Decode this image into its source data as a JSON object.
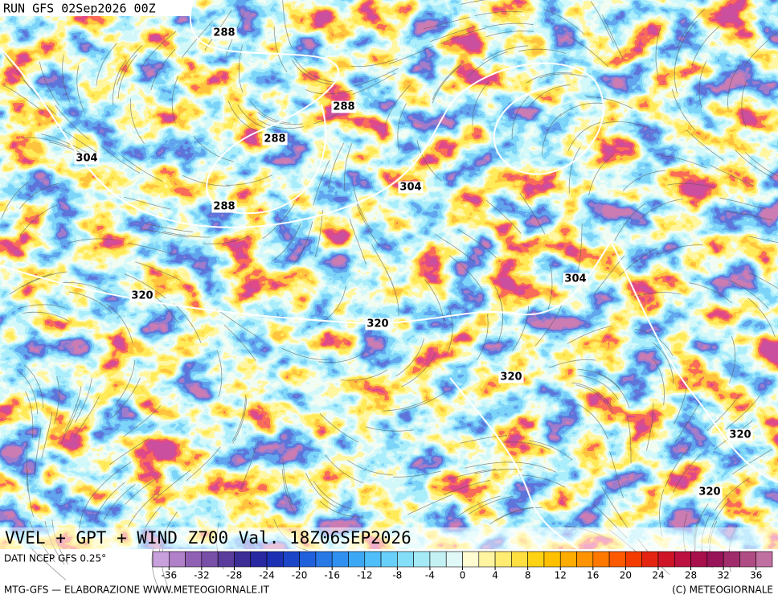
{
  "header": {
    "run": "RUN GFS 02Sep2026 00Z"
  },
  "map": {
    "title": "VVEL + GPT + WIND Z700 Val. 18Z06SEP2026",
    "contour_labels": [
      288,
      288,
      288,
      288,
      304,
      304,
      304,
      320,
      320,
      320,
      320,
      320
    ]
  },
  "colorbar": {
    "source": "DATI NCEP GFS 0.25°",
    "lim": [
      -38,
      38
    ],
    "ticks": [
      -36,
      -32,
      -28,
      -24,
      -20,
      -16,
      -12,
      -8,
      -4,
      0,
      4,
      8,
      12,
      16,
      20,
      24,
      28,
      32,
      36
    ],
    "colors": [
      "#c8a0dc",
      "#b080c8",
      "#9060b4",
      "#7850a8",
      "#5a3c9c",
      "#3c2c96",
      "#2828a0",
      "#1c30b4",
      "#1c46c8",
      "#2060dc",
      "#2878e6",
      "#3090f0",
      "#3ca8f5",
      "#50bef8",
      "#68d0fa",
      "#84def8",
      "#a4eaf6",
      "#c4f2f4",
      "#e0f8f6",
      "#fffcd2",
      "#fff4a0",
      "#ffec70",
      "#ffe040",
      "#ffd214",
      "#ffc000",
      "#ffac00",
      "#ff9400",
      "#ff7800",
      "#ff5a00",
      "#f43c00",
      "#e42410",
      "#d01428",
      "#bc1040",
      "#a8104c",
      "#981458",
      "#a02c6c",
      "#b04c84",
      "#c070a0"
    ]
  },
  "footer": {
    "left": "MTG-GFS — ELABORAZIONE WWW.METEOGIORNALE.IT",
    "right": "(C) METEOGIORNALE"
  }
}
